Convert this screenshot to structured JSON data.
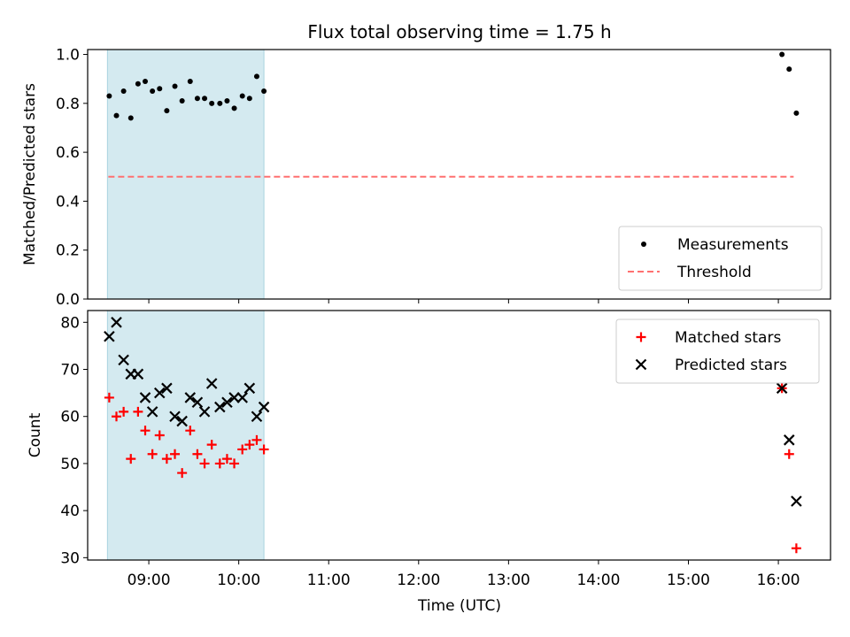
{
  "chart_data": {
    "title": "Flux total observing time = 1.75 h",
    "xlabel": "Time (UTC)",
    "xlim_hours": [
      8.32,
      16.58
    ],
    "xticks": [
      {
        "value": 9,
        "label": "09:00"
      },
      {
        "value": 10,
        "label": "10:00"
      },
      {
        "value": 11,
        "label": "11:00"
      },
      {
        "value": 12,
        "label": "12:00"
      },
      {
        "value": 13,
        "label": "13:00"
      },
      {
        "value": 14,
        "label": "14:00"
      },
      {
        "value": 15,
        "label": "15:00"
      },
      {
        "value": 16,
        "label": "16:00"
      }
    ],
    "shaded_span": {
      "x_start": 8.54,
      "x_end": 10.28,
      "color": "#d4eaf0"
    },
    "panels": [
      {
        "type": "scatter",
        "ylabel": "Matched/Predicted stars",
        "ylim": [
          0.0,
          1.02
        ],
        "yticks": [
          {
            "value": 0.0,
            "label": "0.0"
          },
          {
            "value": 0.2,
            "label": "0.2"
          },
          {
            "value": 0.4,
            "label": "0.4"
          },
          {
            "value": 0.6,
            "label": "0.6"
          },
          {
            "value": 0.8,
            "label": "0.8"
          },
          {
            "value": 1.0,
            "label": "1.0"
          }
        ],
        "series": [
          {
            "name": "Measurements",
            "marker": "dot",
            "color": "#000000",
            "x": [
              8.56,
              8.64,
              8.72,
              8.8,
              8.88,
              8.96,
              9.04,
              9.12,
              9.2,
              9.29,
              9.37,
              9.46,
              9.54,
              9.62,
              9.7,
              9.79,
              9.87,
              9.95,
              10.04,
              10.12,
              10.2,
              10.28,
              16.04,
              16.12,
              16.2
            ],
            "y": [
              0.83,
              0.75,
              0.85,
              0.74,
              0.88,
              0.89,
              0.85,
              0.86,
              0.77,
              0.87,
              0.81,
              0.89,
              0.82,
              0.82,
              0.8,
              0.8,
              0.81,
              0.78,
              0.83,
              0.82,
              0.91,
              0.85,
              1.0,
              0.94,
              0.76
            ]
          }
        ],
        "reference_line": {
          "name": "Threshold",
          "y": 0.5,
          "x_start": 8.55,
          "x_end": 16.17,
          "color": "#ff7070",
          "style": "dashed"
        },
        "legend": {
          "position": "lower-right",
          "entries": [
            "Measurements",
            "Threshold"
          ]
        }
      },
      {
        "type": "scatter",
        "ylabel": "Count",
        "ylim": [
          29.5,
          82.5
        ],
        "yticks": [
          {
            "value": 30,
            "label": "30"
          },
          {
            "value": 40,
            "label": "40"
          },
          {
            "value": 50,
            "label": "50"
          },
          {
            "value": 60,
            "label": "60"
          },
          {
            "value": 70,
            "label": "70"
          },
          {
            "value": 80,
            "label": "80"
          }
        ],
        "series": [
          {
            "name": "Matched stars",
            "marker": "plus",
            "color": "#ff0000",
            "x": [
              8.56,
              8.64,
              8.72,
              8.8,
              8.88,
              8.96,
              9.04,
              9.12,
              9.2,
              9.29,
              9.37,
              9.46,
              9.54,
              9.62,
              9.7,
              9.79,
              9.87,
              9.95,
              10.04,
              10.12,
              10.2,
              10.28,
              16.04,
              16.12,
              16.2
            ],
            "y": [
              64,
              60,
              61,
              51,
              61,
              57,
              52,
              56,
              51,
              52,
              48,
              57,
              52,
              50,
              54,
              50,
              51,
              50,
              53,
              54,
              55,
              53,
              66,
              52,
              32
            ]
          },
          {
            "name": "Predicted stars",
            "marker": "x",
            "color": "#000000",
            "x": [
              8.56,
              8.64,
              8.72,
              8.8,
              8.88,
              8.96,
              9.04,
              9.12,
              9.2,
              9.29,
              9.37,
              9.46,
              9.54,
              9.62,
              9.7,
              9.79,
              9.87,
              9.95,
              10.04,
              10.12,
              10.2,
              10.28,
              16.04,
              16.12,
              16.2
            ],
            "y": [
              77,
              80,
              72,
              69,
              69,
              64,
              61,
              65,
              66,
              60,
              59,
              64,
              63,
              61,
              67,
              62,
              63,
              64,
              64,
              66,
              60,
              62,
              66,
              55,
              42
            ]
          }
        ],
        "legend": {
          "position": "top-right",
          "entries": [
            "Matched stars",
            "Predicted stars"
          ]
        }
      }
    ]
  }
}
